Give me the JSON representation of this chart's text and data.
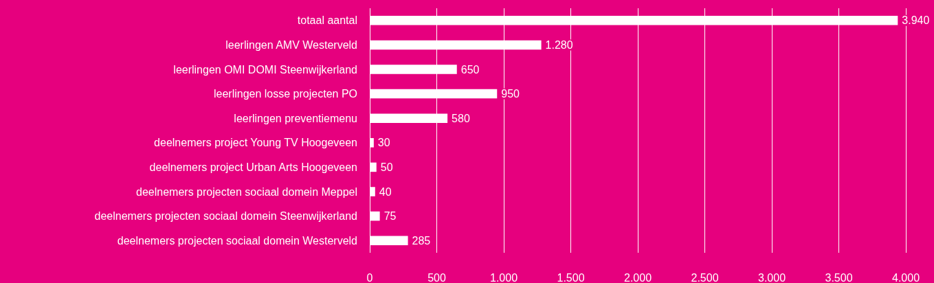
{
  "chart_data": {
    "type": "bar",
    "orientation": "horizontal",
    "categories": [
      "totaal aantal",
      "leerlingen AMV Westerveld",
      "leerlingen OMI DOMI Steenwijkerland",
      "leerlingen losse projecten PO",
      "leerlingen preventiemenu",
      "deelnemers project Young TV Hoogeveen",
      "deelnemers project Urban Arts Hoogeveen",
      "deelnemers projecten sociaal domein Meppel",
      "deelnemers projecten sociaal domein Steenwijkerland",
      "deelnemers projecten sociaal domein Westerveld"
    ],
    "values": [
      3940,
      1280,
      650,
      950,
      580,
      30,
      50,
      40,
      75,
      285
    ],
    "value_labels": [
      "3.940",
      "1.280",
      "650",
      "950",
      "580",
      "30",
      "50",
      "40",
      "75",
      "285"
    ],
    "color": "#ffffff",
    "xlim": [
      0,
      4000
    ],
    "xticks": [
      0,
      {
        "value": 500,
        "label": "500"
      },
      {
        "value": 1000,
        "label": "1.000"
      },
      {
        "value": 1500,
        "label": "1.500"
      },
      {
        "value": 2000,
        "label": "2.000"
      },
      {
        "value": 2500,
        "label": "2.500"
      },
      {
        "value": 3000,
        "label": "3.000"
      },
      {
        "value": 3500,
        "label": "3.500"
      },
      {
        "value": 4000,
        "label": "4.000"
      }
    ],
    "grid": "x"
  }
}
